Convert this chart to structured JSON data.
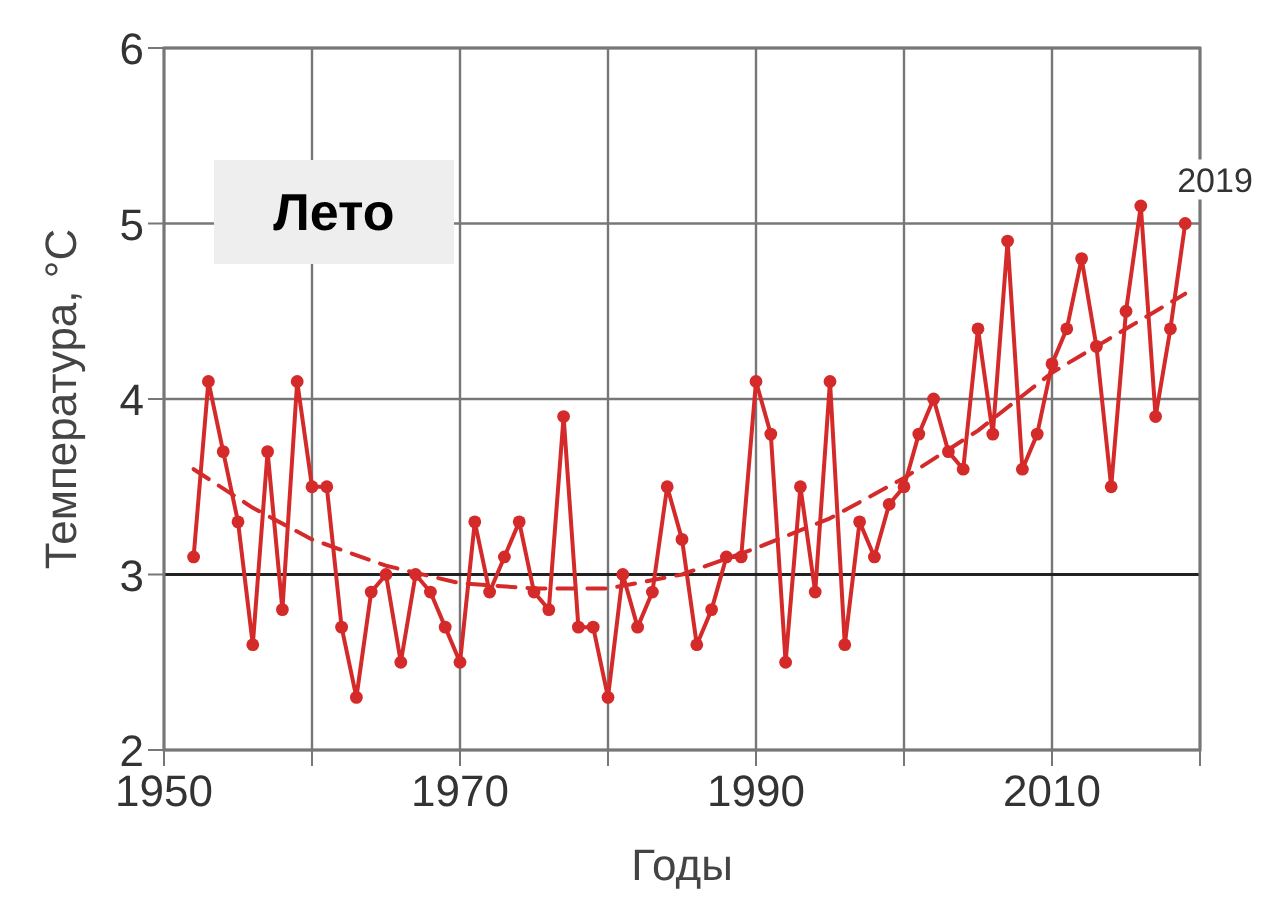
{
  "chart_data": {
    "type": "line",
    "title": "Лето",
    "xlabel": "Годы",
    "ylabel": "Температура, °C",
    "x": [
      1952,
      1953,
      1954,
      1955,
      1956,
      1957,
      1958,
      1959,
      1960,
      1961,
      1962,
      1963,
      1964,
      1965,
      1966,
      1967,
      1968,
      1969,
      1970,
      1971,
      1972,
      1973,
      1974,
      1975,
      1976,
      1977,
      1978,
      1979,
      1980,
      1981,
      1982,
      1983,
      1984,
      1985,
      1986,
      1987,
      1988,
      1989,
      1990,
      1991,
      1992,
      1993,
      1994,
      1995,
      1996,
      1997,
      1998,
      1999,
      2000,
      2001,
      2002,
      2003,
      2004,
      2005,
      2006,
      2007,
      2008,
      2009,
      2010,
      2011,
      2012,
      2013,
      2014,
      2015,
      2016,
      2017,
      2018,
      2019
    ],
    "series": [
      {
        "color": "#d42a2a",
        "marker": "circle",
        "line_style": "solid",
        "values": [
          3.1,
          4.1,
          3.7,
          3.3,
          2.6,
          3.7,
          2.8,
          4.1,
          3.5,
          3.5,
          2.7,
          2.3,
          2.9,
          3.0,
          2.5,
          3.0,
          2.9,
          2.7,
          2.5,
          3.3,
          2.9,
          3.1,
          3.3,
          2.9,
          2.8,
          3.9,
          2.7,
          2.7,
          2.3,
          3.0,
          2.7,
          2.9,
          3.5,
          3.2,
          2.6,
          2.8,
          3.1,
          3.1,
          4.1,
          3.8,
          2.5,
          3.5,
          2.9,
          4.1,
          2.6,
          3.3,
          3.1,
          3.4,
          3.5,
          3.8,
          4.0,
          3.7,
          3.6,
          4.4,
          3.8,
          4.9,
          3.6,
          3.8,
          4.2,
          4.4,
          4.8,
          4.3,
          3.5,
          4.5,
          5.1,
          3.9,
          4.4,
          5.0
        ]
      },
      {
        "type": "line",
        "color": "#d42a2a",
        "marker": "none",
        "line_style": "dashed",
        "x": [
          1952,
          1956,
          1960,
          1965,
          1970,
          1975,
          1980,
          1985,
          1990,
          1995,
          2000,
          2005,
          2010,
          2015,
          2019
        ],
        "values": [
          3.6,
          3.38,
          3.2,
          3.05,
          2.95,
          2.92,
          2.92,
          3.0,
          3.15,
          3.32,
          3.55,
          3.82,
          4.15,
          4.4,
          4.6
        ]
      }
    ],
    "annotations": [
      {
        "text": "2019",
        "x": 2019,
        "y": 5.0
      }
    ],
    "xlim": [
      1950,
      2020
    ],
    "xticks": [
      1950,
      {
        "value": 1960,
        "label": null
      },
      1970,
      {
        "value": 1980,
        "label": null
      },
      1990,
      {
        "value": 2000,
        "label": null
      },
      2010,
      {
        "value": 2020,
        "label": null
      }
    ],
    "ylim": [
      2,
      6
    ],
    "yticks": [
      2,
      3,
      4,
      5,
      6
    ],
    "grid": true,
    "ref_lines": [
      {
        "axis": "y",
        "value": 3,
        "color": "#222222"
      }
    ]
  }
}
